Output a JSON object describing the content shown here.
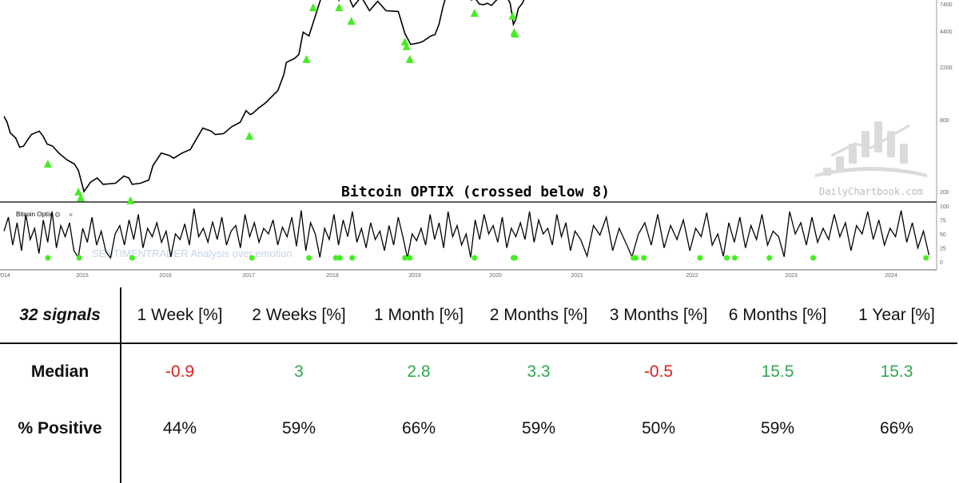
{
  "chart_data": [
    {
      "type": "line",
      "title": "Bitcoin OPTIX (crossed below 8)",
      "panel": "price",
      "yscale": "log",
      "yticks": [
        200,
        800,
        2200,
        4400,
        7400
      ],
      "xticks": [
        "2014",
        "2015",
        "2016",
        "2017",
        "2018",
        "2019",
        "2020",
        "2021",
        "2022",
        "2023",
        "2024"
      ],
      "series": [
        {
          "color": "#000000",
          "points": [
            [
              2014.0,
              850
            ],
            [
              2014.04,
              760
            ],
            [
              2014.08,
              620
            ],
            [
              2014.15,
              560
            ],
            [
              2014.2,
              470
            ],
            [
              2014.25,
              480
            ],
            [
              2014.3,
              540
            ],
            [
              2014.35,
              600
            ],
            [
              2014.45,
              640
            ],
            [
              2014.5,
              580
            ],
            [
              2014.55,
              500
            ],
            [
              2014.62,
              480
            ],
            [
              2014.7,
              420
            ],
            [
              2014.8,
              370
            ],
            [
              2014.9,
              340
            ],
            [
              2014.95,
              300
            ],
            [
              2015.02,
              200
            ],
            [
              2015.1,
              240
            ],
            [
              2015.18,
              260
            ],
            [
              2015.25,
              230
            ],
            [
              2015.4,
              235
            ],
            [
              2015.5,
              270
            ],
            [
              2015.56,
              260
            ],
            [
              2015.6,
              230
            ],
            [
              2015.7,
              235
            ],
            [
              2015.8,
              250
            ],
            [
              2015.85,
              330
            ],
            [
              2015.95,
              420
            ],
            [
              2016.05,
              400
            ],
            [
              2016.1,
              380
            ],
            [
              2016.2,
              420
            ],
            [
              2016.3,
              450
            ],
            [
              2016.45,
              680
            ],
            [
              2016.55,
              640
            ],
            [
              2016.6,
              600
            ],
            [
              2016.7,
              610
            ],
            [
              2016.8,
              700
            ],
            [
              2016.9,
              760
            ],
            [
              2016.97,
              950
            ],
            [
              2017.02,
              880
            ],
            [
              2017.05,
              900
            ],
            [
              2017.12,
              1000
            ],
            [
              2017.2,
              1100
            ],
            [
              2017.28,
              1250
            ],
            [
              2017.35,
              1400
            ],
            [
              2017.42,
              1900
            ],
            [
              2017.45,
              2400
            ],
            [
              2017.5,
              2500
            ],
            [
              2017.55,
              2600
            ],
            [
              2017.6,
              2800
            ],
            [
              2017.65,
              4300
            ],
            [
              2017.72,
              4000
            ],
            [
              2017.8,
              6000
            ],
            [
              2017.88,
              9000
            ],
            [
              2017.97,
              17000
            ],
            [
              2018.05,
              11000
            ],
            [
              2018.08,
              8000
            ],
            [
              2018.15,
              10000
            ],
            [
              2018.25,
              7000
            ],
            [
              2018.35,
              8500
            ],
            [
              2018.45,
              6500
            ],
            [
              2018.55,
              7800
            ],
            [
              2018.65,
              6500
            ],
            [
              2018.8,
              6400
            ],
            [
              2018.88,
              4200
            ],
            [
              2018.95,
              3400
            ],
            [
              2019.05,
              3500
            ],
            [
              2019.1,
              3600
            ],
            [
              2019.2,
              4000
            ],
            [
              2019.25,
              4100
            ],
            [
              2019.3,
              5000
            ],
            [
              2019.35,
              7000
            ],
            [
              2019.45,
              12000
            ],
            [
              2019.6,
              10000
            ],
            [
              2019.7,
              8000
            ],
            [
              2019.75,
              8200
            ],
            [
              2019.8,
              7400
            ],
            [
              2019.85,
              7300
            ],
            [
              2019.9,
              7500
            ],
            [
              2019.95,
              7200
            ],
            [
              2020.05,
              8500
            ],
            [
              2020.1,
              9500
            ],
            [
              2020.18,
              7500
            ],
            [
              2020.22,
              5000
            ],
            [
              2020.25,
              5500
            ],
            [
              2020.28,
              6800
            ],
            [
              2020.33,
              7500
            ],
            [
              2020.38,
              9000
            ],
            [
              2020.42,
              9700
            ]
          ]
        }
      ],
      "signals": {
        "marker": "triangle-up",
        "color": "#44ee22",
        "points": [
          [
            2014.56,
            365
          ],
          [
            2014.95,
            213
          ],
          [
            2014.98,
            190
          ],
          [
            2015.58,
            180
          ],
          [
            2017.01,
            624
          ],
          [
            2017.69,
            2730
          ],
          [
            2017.77,
            7400
          ],
          [
            2018.08,
            7400
          ],
          [
            2018.23,
            5700
          ],
          [
            2018.88,
            3830
          ],
          [
            2018.9,
            3500
          ],
          [
            2018.94,
            2730
          ],
          [
            2019.74,
            6640
          ],
          [
            2020.21,
            6300
          ],
          [
            2020.23,
            4600
          ],
          [
            2020.24,
            4450
          ]
        ]
      },
      "watermark": "DailyChartbook.com"
    },
    {
      "type": "line",
      "panel": "oscillator",
      "label": "Bitcoin Optix",
      "ylim": [
        0,
        100
      ],
      "yticks": [
        0,
        25,
        50,
        75,
        100
      ],
      "watermark": "SENTIMENTRADER Analysis over emotion",
      "series": [
        {
          "color": "#000000",
          "start": 2014.0,
          "end": 2024.38,
          "values": [
            55,
            80,
            30,
            70,
            20,
            85,
            40,
            60,
            15,
            75,
            35,
            90,
            25,
            65,
            45,
            70,
            20,
            8,
            60,
            35,
            80,
            30,
            55,
            18,
            7,
            50,
            65,
            30,
            75,
            40,
            85,
            25,
            60,
            45,
            70,
            35,
            55,
            9,
            50,
            40,
            68,
            30,
            95,
            45,
            60,
            35,
            72,
            40,
            80,
            30,
            55,
            65,
            25,
            85,
            45,
            70,
            35,
            60,
            50,
            75,
            30,
            62,
            45,
            80,
            28,
            92,
            20,
            70,
            50,
            8,
            60,
            40,
            85,
            30,
            75,
            45,
            90,
            35,
            60,
            25,
            70,
            40,
            55,
            20,
            65,
            30,
            80,
            45,
            7,
            50,
            38,
            60,
            30,
            85,
            40,
            70,
            25,
            90,
            45,
            65,
            30,
            50,
            8,
            75,
            40,
            85,
            50,
            65,
            35,
            80,
            25,
            60,
            45,
            70,
            40,
            90,
            35,
            75,
            50,
            60,
            30,
            85,
            45,
            70,
            20,
            55,
            40,
            10,
            65,
            48,
            80,
            20,
            60,
            35,
            9,
            50,
            70,
            30,
            85,
            25,
            65,
            40,
            75,
            20,
            60,
            45,
            88,
            30,
            50,
            10,
            70,
            35,
            80,
            25,
            65,
            40,
            85,
            30,
            55,
            45,
            9,
            90,
            50,
            70,
            30,
            80,
            35,
            60,
            40,
            85,
            45,
            70,
            20,
            65,
            50,
            90,
            40,
            75,
            30,
            60,
            45,
            92,
            35,
            70,
            25,
            55,
            12
          ]
        }
      ],
      "signals": {
        "marker": "dot",
        "color": "#44ee22",
        "dates": [
          2014.56,
          2014.96,
          2015.6,
          2017.04,
          2017.72,
          2018.04,
          2018.09,
          2018.24,
          2018.88,
          2018.94,
          2019.74,
          2020.22,
          2020.24,
          2021.49,
          2021.51,
          2021.58,
          2022.08,
          2022.35,
          2022.43,
          2022.78,
          2023.22,
          2024.35
        ]
      }
    }
  ],
  "table": {
    "corner": "32 signals",
    "headers": [
      "1 Week [%]",
      "2 Weeks [%]",
      "1 Month [%]",
      "2 Months [%]",
      "3 Months [%]",
      "6 Months [%]",
      "1 Year [%]"
    ],
    "rows": [
      {
        "label": "Median",
        "values": [
          "-0.9",
          "3",
          "2.8",
          "3.3",
          "-0.5",
          "15.5",
          "15.3"
        ],
        "colors": [
          "#e0201c",
          "#2fa84f",
          "#2fa84f",
          "#2fa84f",
          "#e0201c",
          "#2fa84f",
          "#2fa84f"
        ]
      },
      {
        "label": "% Positive",
        "values": [
          "44%",
          "59%",
          "66%",
          "59%",
          "50%",
          "59%",
          "66%"
        ]
      }
    ]
  },
  "colors": {
    "negative": "#e0201c",
    "positive": "#2fa84f",
    "signal": "#44ee22"
  }
}
